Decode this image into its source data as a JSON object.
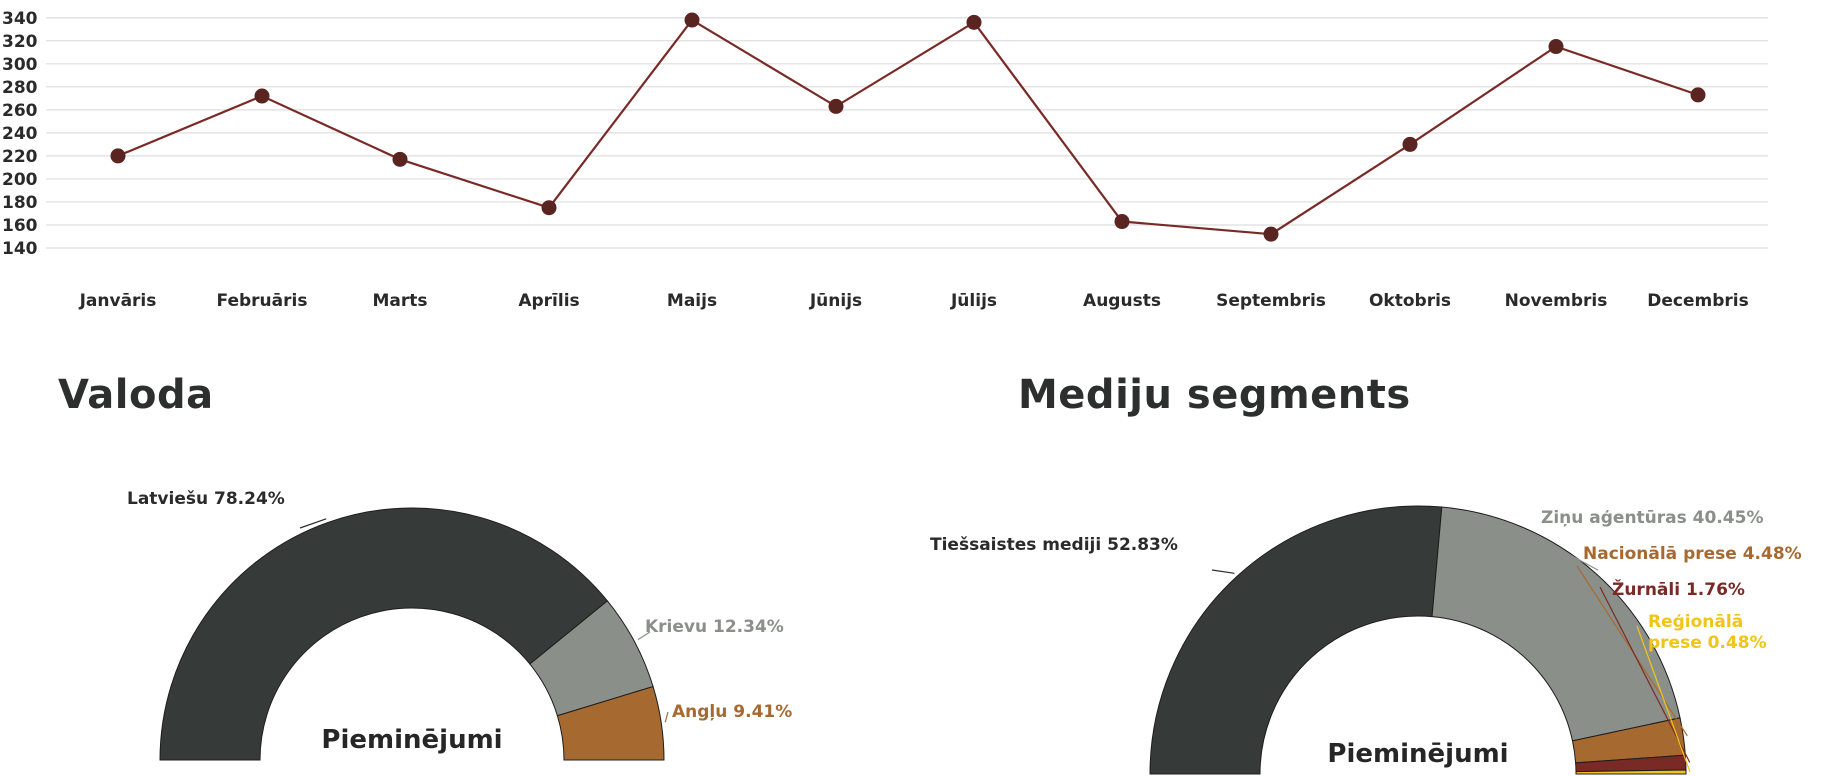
{
  "chart_data": [
    {
      "type": "line",
      "categories": [
        "Janvāris",
        "Februāris",
        "Marts",
        "Aprīlis",
        "Maijs",
        "Jūnijs",
        "Jūlijs",
        "Augusts",
        "Septembris",
        "Oktobris",
        "Novembris",
        "Decembris"
      ],
      "series": [
        {
          "values": [
            220,
            272,
            217,
            175,
            338,
            263,
            336,
            163,
            152,
            230,
            315,
            273
          ]
        }
      ],
      "yticks": [
        140,
        160,
        180,
        200,
        220,
        240,
        260,
        280,
        300,
        320,
        340
      ],
      "ylim": [
        140,
        345
      ],
      "grid": true,
      "colors": {
        "line": "#7a2a26",
        "marker": "#5a2520",
        "grid": "#dedede"
      }
    },
    {
      "type": "pie",
      "title": "Valoda",
      "center_label": "Pieminējumi",
      "slices": [
        {
          "label": "Latviešu 78.24%",
          "value": 78.24,
          "color": "#363b39",
          "text_color": "#2b2b2b"
        },
        {
          "label": "Krievu 12.34%",
          "value": 12.34,
          "color": "#8a8f89",
          "text_color": "#8a8f89"
        },
        {
          "label": "Angļu 9.41%",
          "value": 9.41,
          "color": "#a66a31",
          "text_color": "#a66a31"
        }
      ]
    },
    {
      "type": "pie",
      "title": "Mediju segments",
      "center_label": "Pieminējumi",
      "slices": [
        {
          "label": "Tiešsaistes mediji 52.83%",
          "value": 52.83,
          "color": "#363b39",
          "text_color": "#2b2b2b"
        },
        {
          "label": "Ziņu aģentūras 40.45%",
          "value": 40.45,
          "color": "#8a8f89",
          "text_color": "#8a8f89"
        },
        {
          "label": "Nacionālā prese 4.48%",
          "value": 4.48,
          "color": "#a66a31",
          "text_color": "#a66a31"
        },
        {
          "label": "Žurnāli 1.76%",
          "value": 1.76,
          "color": "#7a2a26",
          "text_color": "#7a2a26"
        },
        {
          "label_lines": [
            "Reģionālā",
            "prese 0.48%"
          ],
          "value": 0.48,
          "color": "#f0c419",
          "text_color": "#f0c419"
        }
      ]
    }
  ]
}
